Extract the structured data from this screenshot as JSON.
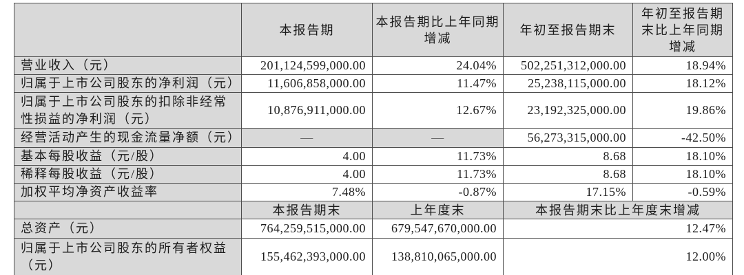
{
  "colors": {
    "header_bg": "#d9d9d9",
    "border": "#4d4d4d",
    "text": "#1c1c1c"
  },
  "table": {
    "header1": {
      "corner": "",
      "current_period": "本报告期",
      "current_period_yoy": "本报告期比上年同期\n增减",
      "ytd": "年初至报告期末",
      "ytd_yoy": "年初至报告期\n末比上年同期\n增减"
    },
    "section1_rows": [
      {
        "label": "营业收入（元）",
        "v1": "201,124,599,000.00",
        "v2": "24.04%",
        "v3": "502,251,312,000.00",
        "v4": "18.94%"
      },
      {
        "label": "归属于上市公司股东的净利润（元）",
        "v1": "11,606,858,000.00",
        "v2": "11.47%",
        "v3": "25,238,115,000.00",
        "v4": "18.12%"
      },
      {
        "label": "归属于上市公司股东的扣除非经常性损益的净利润（元）",
        "v1": "10,876,911,000.00",
        "v2": "12.67%",
        "v3": "23,192,325,000.00",
        "v4": "19.86%"
      },
      {
        "label": "经营活动产生的现金流量净额（元）",
        "v1": "—",
        "v2": "—",
        "v3": "56,273,315,000.00",
        "v4": "-42.50%"
      },
      {
        "label": "基本每股收益（元/股）",
        "v1": "4.00",
        "v2": "11.73%",
        "v3": "8.68",
        "v4": "18.10%"
      },
      {
        "label": "稀释每股收益（元/股）",
        "v1": "4.00",
        "v2": "11.73%",
        "v3": "8.68",
        "v4": "18.10%"
      },
      {
        "label": "加权平均净资产收益率",
        "v1": "7.48%",
        "v2": "-0.87%",
        "v3": "17.15%",
        "v4": "-0.59%"
      }
    ],
    "header2": {
      "corner": "",
      "period_end": "本报告期末",
      "prev_year_end": "上年度末",
      "period_end_change": "本报告期末比上年度末增减"
    },
    "section2_rows": [
      {
        "label": "总资产（元）",
        "v1": "764,259,515,000.00",
        "v2": "679,547,670,000.00",
        "v3": "12.47%"
      },
      {
        "label": "归属于上市公司股东的所有者权益（元）",
        "v1": "155,462,393,000.00",
        "v2": "138,810,065,000.00",
        "v3": "12.00%"
      }
    ]
  }
}
